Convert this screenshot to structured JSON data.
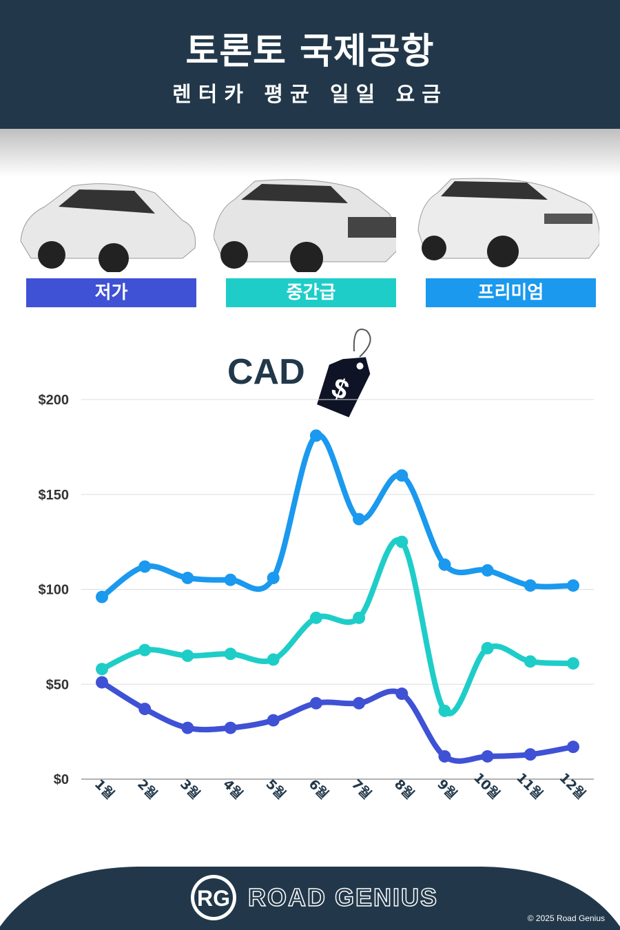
{
  "header": {
    "title": "토론토 국제공항",
    "subtitle": "렌터카 평균 일일 요금"
  },
  "categories": [
    {
      "label": "저가",
      "color": "#3f51d4"
    },
    {
      "label": "중간급",
      "color": "#1ecdc8"
    },
    {
      "label": "프리미엄",
      "color": "#1a99ee"
    }
  ],
  "currency_label": "CAD",
  "tag_symbol": "$",
  "chart_data": {
    "type": "line",
    "x": [
      "1월",
      "2월",
      "3월",
      "4월",
      "5월",
      "6월",
      "7월",
      "8월",
      "9월",
      "10월",
      "11월",
      "12월"
    ],
    "yticks": [
      "$0",
      "$50",
      "$100",
      "$150",
      "$200"
    ],
    "ylim": [
      0,
      200
    ],
    "grid": true,
    "series": [
      {
        "name": "프리미엄",
        "color": "#1a99ee",
        "values": [
          96,
          112,
          106,
          105,
          106,
          181,
          137,
          160,
          113,
          110,
          102,
          102
        ]
      },
      {
        "name": "중간급",
        "color": "#1ecdc8",
        "values": [
          58,
          68,
          65,
          66,
          63,
          85,
          85,
          125,
          36,
          69,
          62,
          61
        ]
      },
      {
        "name": "저가",
        "color": "#3f51d4",
        "values": [
          51,
          37,
          27,
          27,
          31,
          40,
          40,
          45,
          12,
          12,
          13,
          17
        ]
      }
    ]
  },
  "footer": {
    "logo_initials": "RG",
    "brand": "ROAD GENIUS",
    "copyright": "© 2025 Road Genius"
  }
}
